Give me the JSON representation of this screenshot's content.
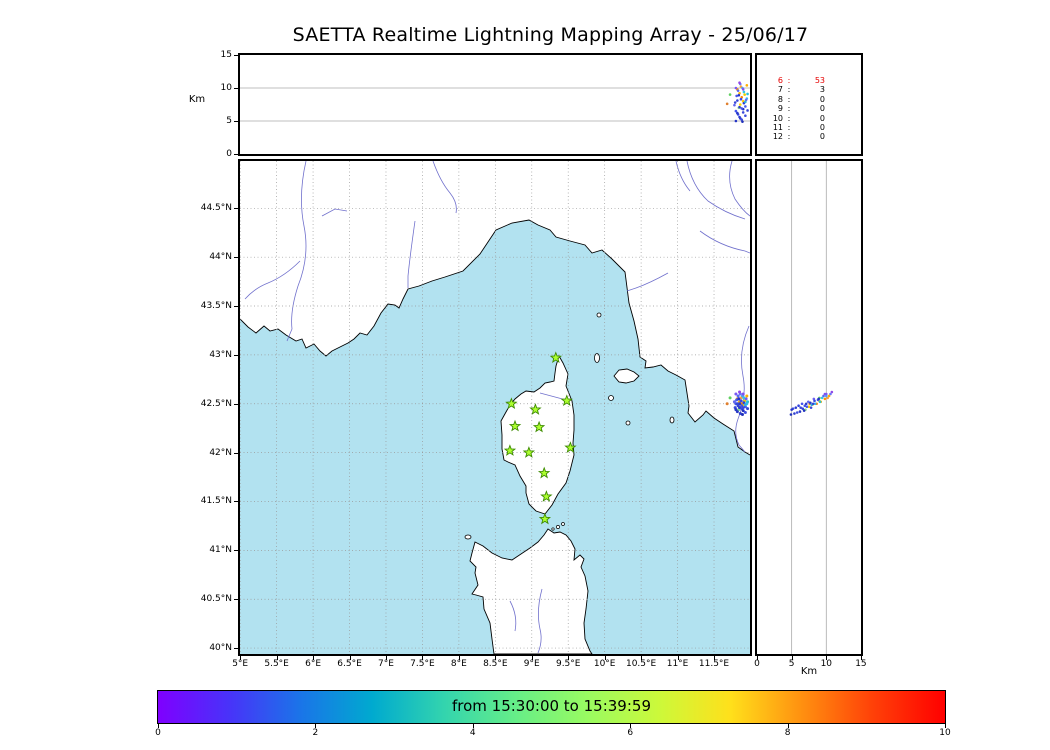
{
  "title": "SAETTA Realtime Lightning Mapping Array - 25/06/17",
  "alt_lon_panel": {
    "ylabel": "Km",
    "yticks": [
      "0",
      "5",
      "10",
      "15"
    ]
  },
  "alt_lat_panel": {
    "xlabel": "Km",
    "xticks": [
      "0",
      "5",
      "10",
      "15"
    ]
  },
  "counts_panel": {
    "rows": [
      {
        "minute": "6",
        "count": "53",
        "color": "#e60000"
      },
      {
        "minute": "7",
        "count": "3",
        "color": "#000000"
      },
      {
        "minute": "8",
        "count": "0",
        "color": "#000000"
      },
      {
        "minute": "9",
        "count": "0",
        "color": "#000000"
      },
      {
        "minute": "10",
        "count": "0",
        "color": "#000000"
      },
      {
        "minute": "11",
        "count": "0",
        "color": "#000000"
      },
      {
        "minute": "12",
        "count": "0",
        "color": "#000000"
      }
    ]
  },
  "map_panel": {
    "lat_ticks": [
      "44.5°N",
      "44°N",
      "43.5°N",
      "43°N",
      "42.5°N",
      "42°N",
      "41.5°N",
      "41°N",
      "40.5°N",
      "40°N"
    ],
    "lon_ticks": [
      "5°E",
      "5.5°E",
      "6°E",
      "6.5°E",
      "7°E",
      "7.5°E",
      "8°E",
      "8.5°E",
      "9°E",
      "9.5°E",
      "10°E",
      "10.5°E",
      "11°E",
      "11.5°E"
    ],
    "sea_color": "#b2e2f0",
    "land_color": "#ffffff",
    "river_color": "#7070cc",
    "grid_color": "#999999",
    "station_fill": "#adff2f",
    "station_stroke": "#3d8b00"
  },
  "colorbar": {
    "label": "from 15:30:00 to 15:39:59",
    "ticks": [
      "0",
      "2",
      "4",
      "6",
      "8",
      "10"
    ],
    "colors": [
      "#7f00ff",
      "#4833f9",
      "#1a75e8",
      "#00aacf",
      "#33d4ae",
      "#66ee88",
      "#99fb61",
      "#ccf93a",
      "#ffe01b",
      "#ff9010",
      "#ff4008",
      "#ff0000"
    ]
  },
  "chart_data": {
    "type": "scatter",
    "title": "SAETTA Realtime Lightning Mapping Array - 25/06/17",
    "time_window": "from 15:30:00 to 15:39:59",
    "map_xlim_lon": [
      4.9976,
      11.993
    ],
    "map_ylim_lat": [
      39.94,
      44.984
    ],
    "altitude_km_range": [
      0,
      15
    ],
    "colorbar_minutes_range": [
      0,
      10
    ],
    "minute_counts": [
      [
        6,
        53
      ],
      [
        7,
        3
      ],
      [
        8,
        0
      ],
      [
        9,
        0
      ],
      [
        10,
        0
      ],
      [
        11,
        0
      ],
      [
        12,
        0
      ]
    ],
    "stations_lon_lat": [
      [
        9.33,
        42.97
      ],
      [
        8.72,
        42.5
      ],
      [
        9.05,
        42.44
      ],
      [
        9.48,
        42.53
      ],
      [
        8.77,
        42.27
      ],
      [
        9.1,
        42.26
      ],
      [
        9.53,
        42.05
      ],
      [
        8.7,
        42.02
      ],
      [
        8.96,
        42.0
      ],
      [
        9.17,
        41.79
      ],
      [
        9.2,
        41.55
      ],
      [
        9.18,
        41.32
      ]
    ],
    "sources_lon_lat_altkm_color": [
      [
        11.82,
        42.55,
        9.8,
        "#ff9500"
      ],
      [
        11.85,
        42.52,
        9.2,
        "#ffb300"
      ],
      [
        11.88,
        42.5,
        8.6,
        "#ff8000"
      ],
      [
        11.9,
        42.49,
        8.0,
        "#ffc400"
      ],
      [
        11.86,
        42.47,
        7.5,
        "#ffd700"
      ],
      [
        11.95,
        42.58,
        10.4,
        "#ffae00"
      ],
      [
        11.92,
        42.53,
        9.0,
        "#f0d000"
      ],
      [
        11.68,
        42.5,
        7.6,
        "#e08030"
      ],
      [
        11.72,
        42.56,
        9.0,
        "#60d060"
      ],
      [
        11.84,
        42.44,
        7.0,
        "#8ce08c"
      ],
      [
        11.87,
        42.56,
        10.2,
        "#ffa040"
      ],
      [
        11.8,
        42.5,
        6.5,
        "#4455ee"
      ],
      [
        11.83,
        42.48,
        6.0,
        "#3344dd"
      ],
      [
        11.85,
        42.46,
        5.6,
        "#2a3ad0"
      ],
      [
        11.88,
        42.45,
        5.2,
        "#3c4ce0"
      ],
      [
        11.9,
        42.43,
        6.8,
        "#2030c0"
      ],
      [
        11.93,
        42.47,
        7.2,
        "#4a5aee"
      ],
      [
        11.95,
        42.5,
        8.4,
        "#38b8f0"
      ],
      [
        11.91,
        42.56,
        9.4,
        "#30c8e8"
      ],
      [
        11.89,
        42.58,
        10.0,
        "#50a0f0"
      ],
      [
        11.86,
        42.6,
        10.6,
        "#6878f8"
      ],
      [
        11.83,
        42.58,
        9.6,
        "#5868f0"
      ],
      [
        11.81,
        42.54,
        8.8,
        "#4858e8"
      ],
      [
        11.79,
        42.46,
        7.8,
        "#3848d8"
      ],
      [
        11.82,
        42.42,
        6.2,
        "#2838c8"
      ],
      [
        11.86,
        42.4,
        5.4,
        "#3040d0"
      ],
      [
        11.89,
        42.39,
        4.9,
        "#2030b8"
      ],
      [
        11.93,
        42.41,
        5.8,
        "#4050e0"
      ],
      [
        11.96,
        42.45,
        6.6,
        "#3545d5"
      ],
      [
        11.94,
        42.55,
        8.2,
        "#7060f0"
      ],
      [
        11.9,
        42.6,
        9.8,
        "#8050f0"
      ],
      [
        11.85,
        42.62,
        10.8,
        "#9048e8"
      ],
      [
        11.8,
        42.6,
        10.0,
        "#7a58f2"
      ],
      [
        11.78,
        42.52,
        7.4,
        "#6066ee"
      ],
      [
        11.84,
        42.55,
        8.9,
        "#2233cc"
      ],
      [
        11.87,
        42.53,
        8.3,
        "#3a4adf"
      ],
      [
        11.91,
        42.51,
        7.7,
        "#2d3dd2"
      ],
      [
        11.88,
        42.48,
        6.9,
        "#4353e5"
      ],
      [
        11.85,
        42.5,
        7.1,
        "#2c3cc8"
      ],
      [
        11.9,
        42.46,
        6.3,
        "#3949da"
      ],
      [
        11.93,
        42.49,
        7.9,
        "#30b0e0"
      ],
      [
        11.96,
        42.52,
        9.1,
        "#28c0d8"
      ],
      [
        11.82,
        42.5,
        8.1,
        "#3646d6"
      ],
      [
        11.8,
        42.44,
        5.0,
        "#2535c5"
      ]
    ]
  }
}
